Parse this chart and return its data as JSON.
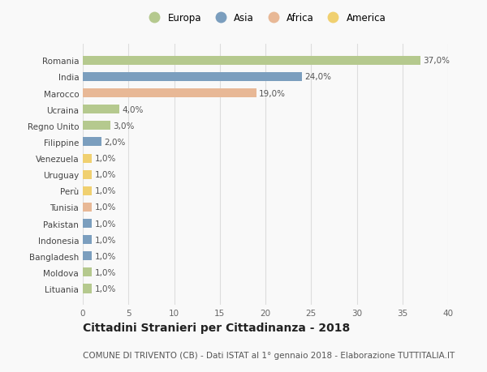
{
  "countries": [
    "Romania",
    "India",
    "Marocco",
    "Ucraina",
    "Regno Unito",
    "Filippine",
    "Venezuela",
    "Uruguay",
    "Perù",
    "Tunisia",
    "Pakistan",
    "Indonesia",
    "Bangladesh",
    "Moldova",
    "Lituania"
  ],
  "values": [
    37.0,
    24.0,
    19.0,
    4.0,
    3.0,
    2.0,
    1.0,
    1.0,
    1.0,
    1.0,
    1.0,
    1.0,
    1.0,
    1.0,
    1.0
  ],
  "labels": [
    "37,0%",
    "24,0%",
    "19,0%",
    "4,0%",
    "3,0%",
    "2,0%",
    "1,0%",
    "1,0%",
    "1,0%",
    "1,0%",
    "1,0%",
    "1,0%",
    "1,0%",
    "1,0%",
    "1,0%"
  ],
  "continents": [
    "Europa",
    "Asia",
    "Africa",
    "Europa",
    "Europa",
    "Asia",
    "America",
    "America",
    "America",
    "Africa",
    "Asia",
    "Asia",
    "Asia",
    "Europa",
    "Europa"
  ],
  "continent_colors": {
    "Europa": "#b5c98e",
    "Asia": "#7b9ebe",
    "Africa": "#e8b896",
    "America": "#f0d070"
  },
  "legend_order": [
    "Europa",
    "Asia",
    "Africa",
    "America"
  ],
  "legend_colors": [
    "#b5c98e",
    "#7b9ebe",
    "#e8b896",
    "#f0d070"
  ],
  "title": "Cittadini Stranieri per Cittadinanza - 2018",
  "subtitle": "COMUNE DI TRIVENTO (CB) - Dati ISTAT al 1° gennaio 2018 - Elaborazione TUTTITALIA.IT",
  "xlim": [
    0,
    40
  ],
  "xticks": [
    0,
    5,
    10,
    15,
    20,
    25,
    30,
    35,
    40
  ],
  "background_color": "#f9f9f9",
  "grid_color": "#dddddd",
  "title_fontsize": 10,
  "subtitle_fontsize": 7.5,
  "label_fontsize": 7.5,
  "tick_fontsize": 7.5,
  "legend_fontsize": 8.5
}
